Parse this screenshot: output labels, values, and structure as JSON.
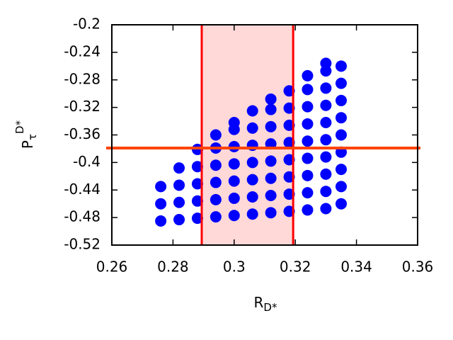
{
  "chart_data": {
    "type": "scatter",
    "xlabel": {
      "text": "R",
      "sub": "D*"
    },
    "ylabel": {
      "text": "P",
      "sub": "τ",
      "sup": "D*"
    },
    "xlim": [
      0.26,
      0.36
    ],
    "xticks": [
      0.26,
      0.28,
      0.3,
      0.32,
      0.34,
      0.36
    ],
    "ylim": [
      -0.52,
      -0.2
    ],
    "yticks": [
      -0.52,
      -0.48,
      -0.44,
      -0.4,
      -0.36,
      -0.32,
      -0.28,
      -0.24,
      -0.2
    ],
    "band": {
      "x": [
        0.2894,
        0.3193
      ],
      "fill": "#ffd8d8",
      "edge": "#ff0000"
    },
    "hline": {
      "y": -0.379,
      "color": "#ff4400"
    },
    "series": [
      {
        "color": "#0000ff",
        "x": [
          0.276,
          0.276,
          0.276,
          0.282,
          0.282,
          0.282,
          0.282,
          0.288,
          0.288,
          0.288,
          0.288,
          0.288,
          0.294,
          0.294,
          0.294,
          0.294,
          0.294,
          0.294,
          0.3,
          0.3,
          0.3,
          0.3,
          0.3,
          0.3,
          0.3,
          0.306,
          0.306,
          0.306,
          0.306,
          0.306,
          0.306,
          0.306,
          0.312,
          0.312,
          0.312,
          0.312,
          0.312,
          0.312,
          0.312,
          0.312,
          0.318,
          0.318,
          0.318,
          0.318,
          0.318,
          0.318,
          0.318,
          0.318,
          0.324,
          0.324,
          0.324,
          0.324,
          0.324,
          0.324,
          0.324,
          0.324,
          0.324,
          0.33,
          0.33,
          0.33,
          0.33,
          0.33,
          0.33,
          0.33,
          0.33,
          0.33,
          0.33,
          0.335,
          0.335,
          0.335,
          0.335,
          0.335,
          0.335,
          0.335,
          0.335,
          0.335
        ],
        "y": [
          -0.485,
          -0.46,
          -0.435,
          -0.483,
          -0.458,
          -0.433,
          -0.408,
          -0.481,
          -0.456,
          -0.431,
          -0.406,
          -0.381,
          -0.479,
          -0.454,
          -0.429,
          -0.404,
          -0.379,
          -0.36,
          -0.477,
          -0.452,
          -0.427,
          -0.402,
          -0.377,
          -0.352,
          -0.342,
          -0.475,
          -0.45,
          -0.425,
          -0.4,
          -0.375,
          -0.35,
          -0.325,
          -0.473,
          -0.448,
          -0.423,
          -0.398,
          -0.373,
          -0.348,
          -0.323,
          -0.308,
          -0.471,
          -0.446,
          -0.421,
          -0.396,
          -0.371,
          -0.346,
          -0.321,
          -0.296,
          -0.469,
          -0.444,
          -0.419,
          -0.394,
          -0.369,
          -0.344,
          -0.319,
          -0.294,
          -0.274,
          -0.467,
          -0.442,
          -0.417,
          -0.392,
          -0.367,
          -0.342,
          -0.317,
          -0.292,
          -0.267,
          -0.256,
          -0.46,
          -0.435,
          -0.41,
          -0.385,
          -0.36,
          -0.335,
          -0.31,
          -0.285,
          -0.26
        ]
      }
    ]
  }
}
